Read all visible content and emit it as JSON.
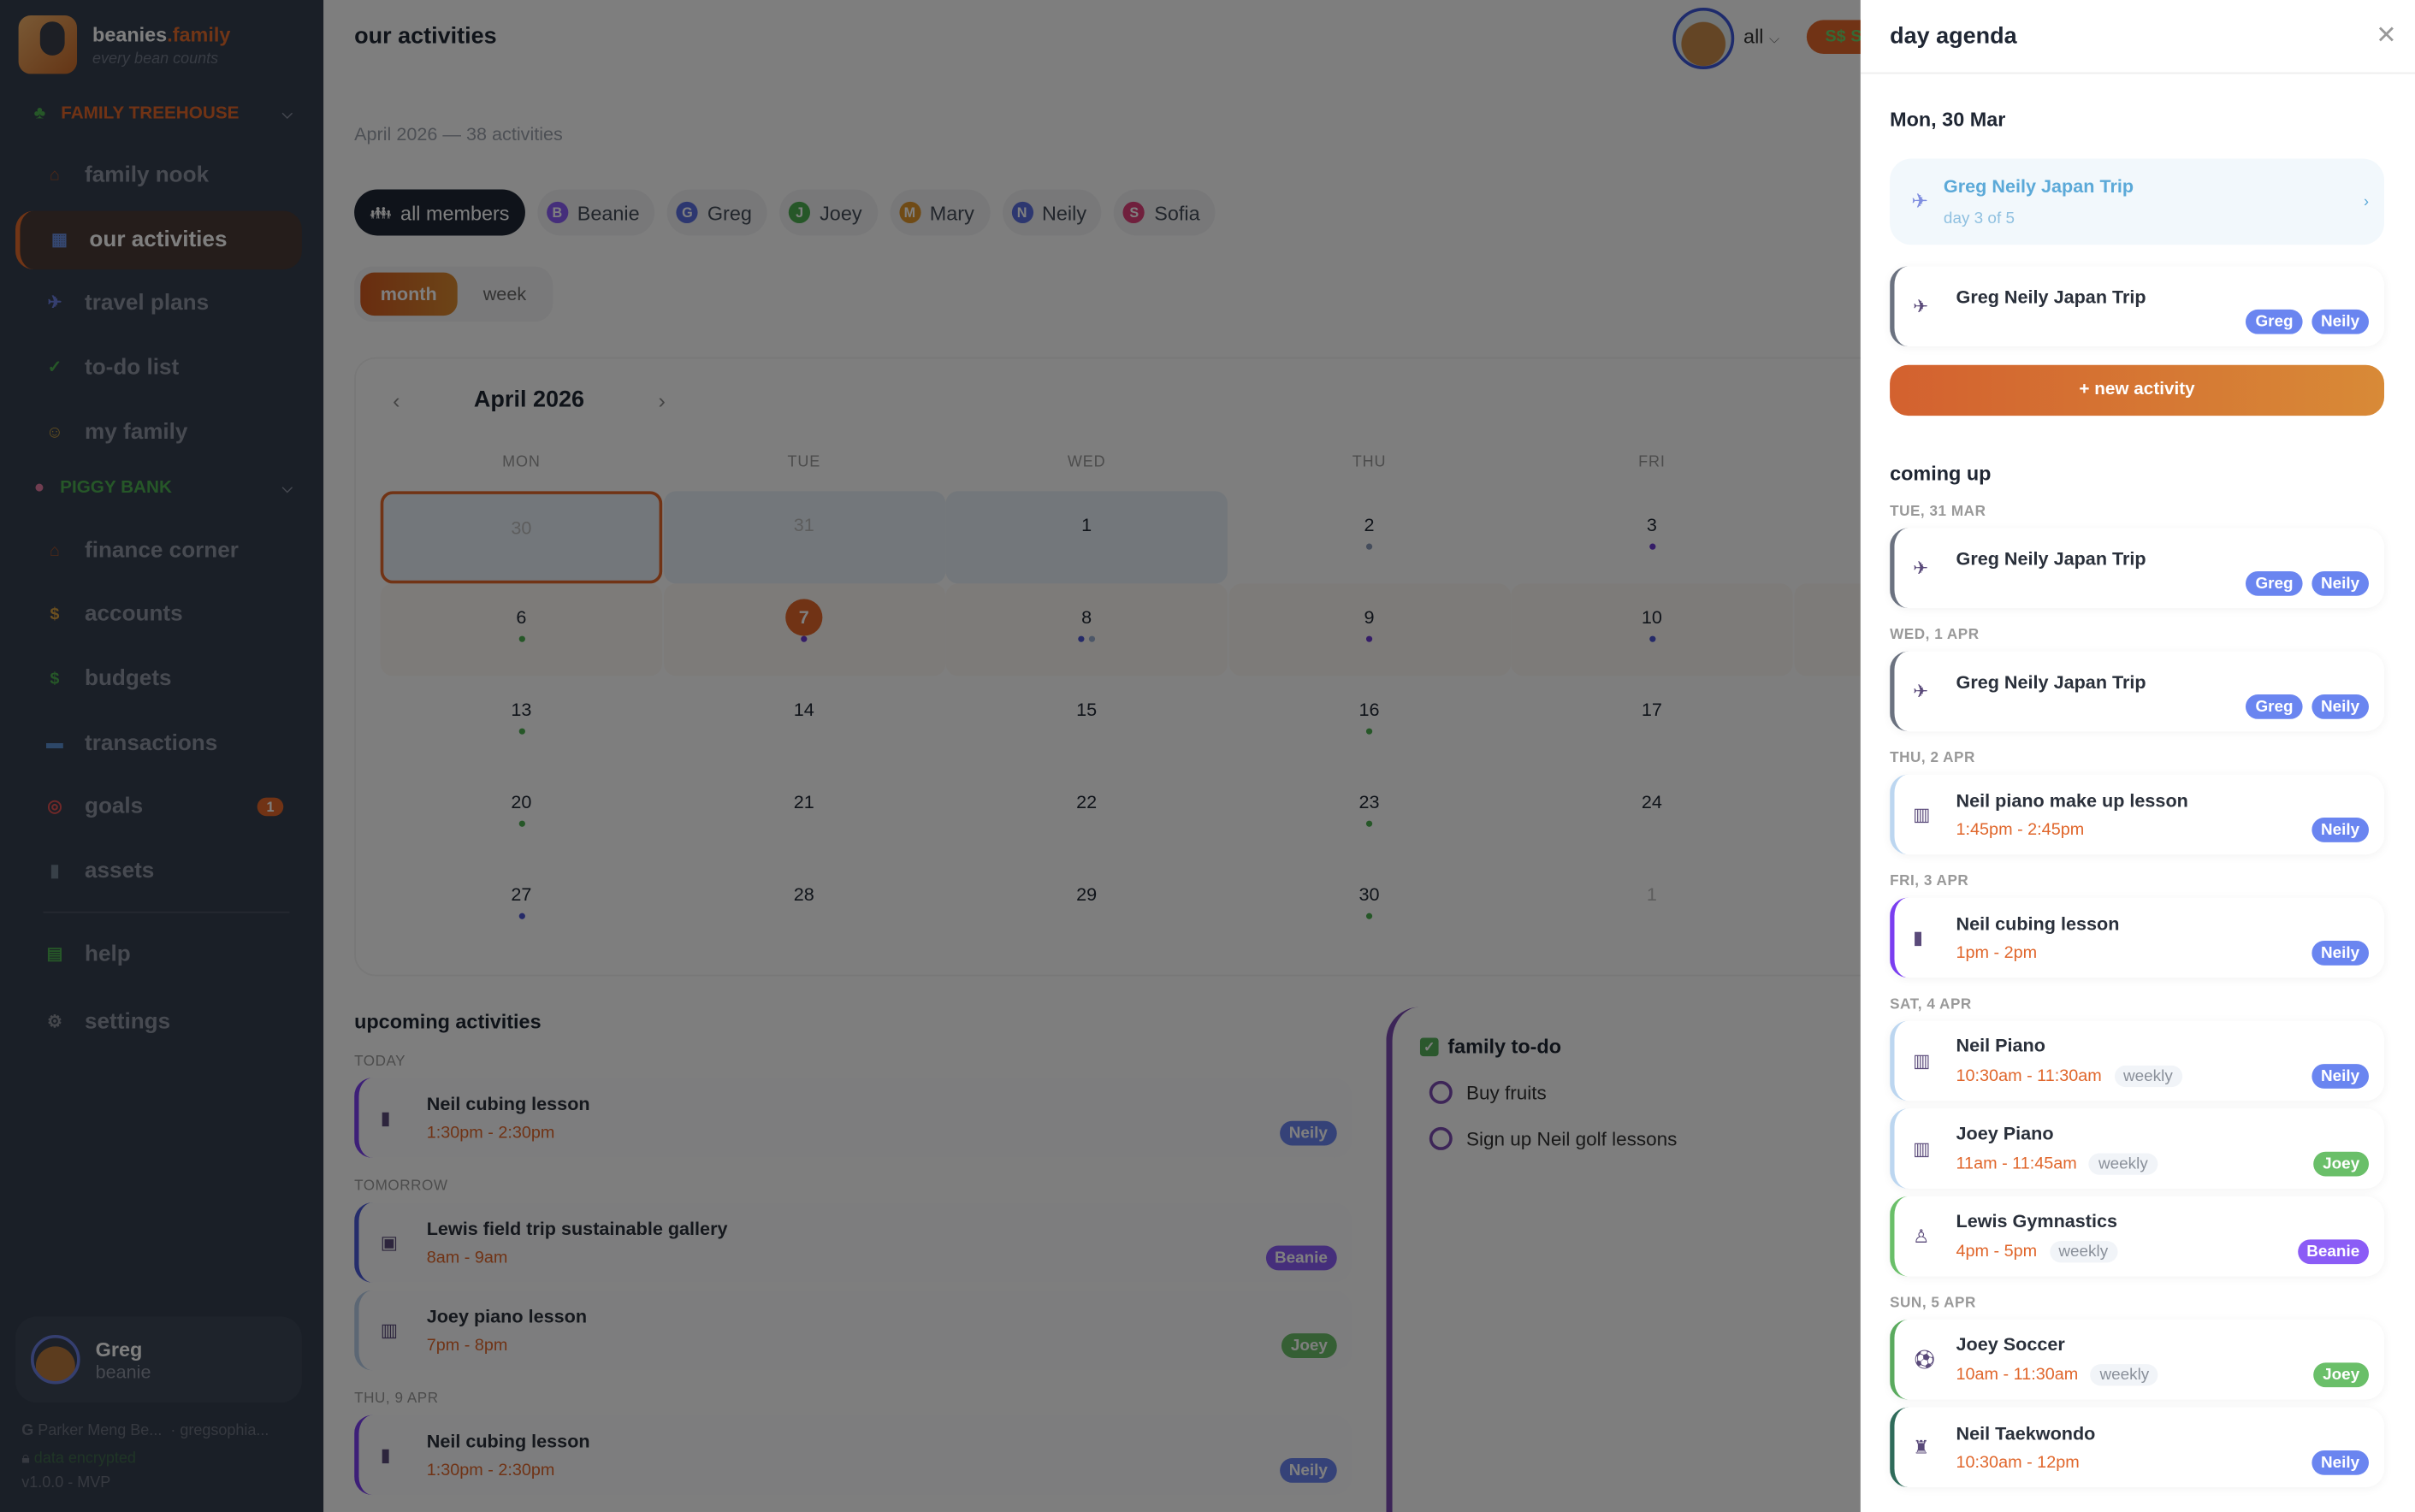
{
  "colors": {
    "accent": "#e2672a",
    "greg": "#6a85f0",
    "neily": "#6a85f0",
    "joey": "#6abf69",
    "beanie": "#8b5cf6"
  },
  "brand": {
    "name": "beanies",
    "suffix": ".family",
    "tagline": "every bean counts"
  },
  "sidebar": {
    "sections": [
      {
        "label": "FAMILY TREEHOUSE",
        "icon": "tree-icon",
        "color": "#e2672a"
      },
      {
        "label": "PIGGY BANK",
        "icon": "pig-icon",
        "color": "#4caf50"
      }
    ],
    "items": [
      {
        "label": "family nook",
        "icon": "house-icon",
        "glyph": "⌂",
        "color": "#a0522d"
      },
      {
        "label": "our activities",
        "icon": "calendar-icon",
        "glyph": "▦",
        "color": "#6b8fe0",
        "active": true
      },
      {
        "label": "travel plans",
        "icon": "airplane-icon",
        "glyph": "✈",
        "color": "#6b7fe0"
      },
      {
        "label": "to-do list",
        "icon": "checkbox-icon",
        "glyph": "✓",
        "color": "#4caf50"
      },
      {
        "label": "my family",
        "icon": "family-icon",
        "glyph": "☺",
        "color": "#c9a040"
      },
      {
        "label": "finance corner",
        "icon": "house-icon",
        "glyph": "⌂",
        "color": "#a0522d"
      },
      {
        "label": "accounts",
        "icon": "money-bag-icon",
        "glyph": "$",
        "color": "#d8a040"
      },
      {
        "label": "budgets",
        "icon": "banknote-icon",
        "glyph": "$",
        "color": "#4caf50"
      },
      {
        "label": "transactions",
        "icon": "credit-card-icon",
        "glyph": "▬",
        "color": "#5b8fd0"
      },
      {
        "label": "goals",
        "icon": "target-icon",
        "glyph": "◎",
        "color": "#e05050",
        "badge": "1"
      },
      {
        "label": "assets",
        "icon": "building-icon",
        "glyph": "▮",
        "color": "#708090"
      },
      {
        "label": "help",
        "icon": "books-icon",
        "glyph": "▤",
        "color": "#4caf50"
      },
      {
        "label": "settings",
        "icon": "gear-icon",
        "glyph": "⚙",
        "color": "#8a8f99"
      }
    ],
    "user": {
      "name": "Greg",
      "role": "beanie"
    },
    "footer": {
      "account": "Parker Meng Be...",
      "email": "· gregsophia...",
      "encryption": "data encrypted",
      "version": "v1.0.0 - MVP"
    }
  },
  "header": {
    "title": "our activities",
    "member_select": "all",
    "currency": "S$ SG"
  },
  "main": {
    "subtitle": "April 2026 — 38 activities",
    "filters": [
      {
        "label": "all members",
        "active": true
      },
      {
        "label": "Beanie",
        "initial": "B",
        "color": "#8b5cf6"
      },
      {
        "label": "Greg",
        "initial": "G",
        "color": "#5b6fe0"
      },
      {
        "label": "Joey",
        "initial": "J",
        "color": "#4caf50"
      },
      {
        "label": "Mary",
        "initial": "M",
        "color": "#e0962c"
      },
      {
        "label": "Neily",
        "initial": "N",
        "color": "#5b6fe0"
      },
      {
        "label": "Sofia",
        "initial": "S",
        "color": "#e0407a"
      }
    ],
    "view_toggle": {
      "month": "month",
      "week": "week",
      "selected": "month"
    },
    "calendar": {
      "month_label": "April 2026",
      "weekdays": [
        "MON",
        "TUE",
        "WED",
        "THU",
        "FRI"
      ],
      "weeks": [
        [
          {
            "d": "30",
            "muted": true,
            "trip": true,
            "selected": true,
            "dots": []
          },
          {
            "d": "31",
            "muted": true,
            "trip": true,
            "dots": []
          },
          {
            "d": "1",
            "trip": true,
            "dots": []
          },
          {
            "d": "2",
            "dots": [
              "#8a9ab8"
            ]
          },
          {
            "d": "3",
            "dots": [
              "#6a3ad0"
            ]
          }
        ],
        [
          {
            "d": "6",
            "week": true,
            "dots": [
              "#4caf50"
            ]
          },
          {
            "d": "7",
            "week": true,
            "today": true,
            "dots": [
              "#6a3ad0"
            ]
          },
          {
            "d": "8",
            "week": true,
            "dots": [
              "#4a55d0",
              "#9aaed0"
            ]
          },
          {
            "d": "9",
            "week": true,
            "dots": [
              "#6a3ad0"
            ]
          },
          {
            "d": "10",
            "week": true,
            "dots": [
              "#4a55d0"
            ]
          }
        ],
        [
          {
            "d": "13",
            "dots": [
              "#4caf50"
            ]
          },
          {
            "d": "14",
            "dots": []
          },
          {
            "d": "15",
            "dots": []
          },
          {
            "d": "16",
            "dots": [
              "#4caf50"
            ]
          },
          {
            "d": "17",
            "dots": []
          }
        ],
        [
          {
            "d": "20",
            "dots": [
              "#4caf50"
            ]
          },
          {
            "d": "21",
            "dots": []
          },
          {
            "d": "22",
            "dots": []
          },
          {
            "d": "23",
            "dots": [
              "#4caf50"
            ]
          },
          {
            "d": "24",
            "dots": []
          }
        ],
        [
          {
            "d": "27",
            "dots": [
              "#4a55d0"
            ]
          },
          {
            "d": "28",
            "dots": []
          },
          {
            "d": "29",
            "dots": []
          },
          {
            "d": "30",
            "dots": [
              "#4caf50"
            ]
          },
          {
            "d": "1",
            "muted": true,
            "dots": []
          }
        ]
      ]
    },
    "upcoming": {
      "title": "upcoming activities",
      "groups": [
        {
          "label": "TODAY",
          "items": [
            {
              "name": "Neil cubing lesson",
              "time": "1:30pm - 2:30pm",
              "icon": "notebook-icon",
              "glyph": "▮",
              "border": "#7a3ef0",
              "members": [
                {
                  "n": "Neily",
                  "c": "#6a85f0"
                }
              ]
            }
          ]
        },
        {
          "label": "TOMORROW",
          "items": [
            {
              "name": "Lewis field trip sustainable gallery",
              "time": "8am - 9am",
              "icon": "bus-icon",
              "glyph": "▣",
              "border": "#4a5ad8",
              "members": [
                {
                  "n": "Beanie",
                  "c": "#8b5cf6"
                }
              ]
            },
            {
              "name": "Joey piano lesson",
              "time": "7pm - 8pm",
              "icon": "piano-icon",
              "glyph": "▥",
              "border": "#b8cfe8",
              "members": [
                {
                  "n": "Joey",
                  "c": "#6abf69"
                }
              ]
            }
          ]
        },
        {
          "label": "THU, 9 APR",
          "items": [
            {
              "name": "Neil cubing lesson",
              "time": "1:30pm - 2:30pm",
              "icon": "notebook-icon",
              "glyph": "▮",
              "border": "#7a3ef0",
              "members": [
                {
                  "n": "Neily",
                  "c": "#6a85f0"
                }
              ]
            }
          ]
        }
      ]
    },
    "todo": {
      "title": "family to-do",
      "items": [
        "Buy fruits",
        "Sign up Neil golf lessons"
      ]
    }
  },
  "agenda": {
    "title": "day agenda",
    "date": "Mon, 30 Mar",
    "pinned": {
      "name": "Greg Neily Japan Trip",
      "detail": "day 3 of 5"
    },
    "today_items": [
      {
        "name": "Greg Neily Japan Trip",
        "icon": "airplane-icon",
        "glyph": "✈",
        "border": "#6b7280",
        "members": [
          {
            "n": "Greg",
            "c": "#6a85f0"
          },
          {
            "n": "Neily",
            "c": "#6a85f0"
          }
        ]
      }
    ],
    "new_activity": "+ new activity",
    "coming_up_title": "coming up",
    "groups": [
      {
        "label": "TUE, 31 MAR",
        "items": [
          {
            "name": "Greg Neily Japan Trip",
            "icon": "airplane-icon",
            "glyph": "✈",
            "border": "#6b7280",
            "members": [
              {
                "n": "Greg",
                "c": "#6a85f0"
              },
              {
                "n": "Neily",
                "c": "#6a85f0"
              }
            ]
          }
        ]
      },
      {
        "label": "WED, 1 APR",
        "items": [
          {
            "name": "Greg Neily Japan Trip",
            "icon": "airplane-icon",
            "glyph": "✈",
            "border": "#6b7280",
            "members": [
              {
                "n": "Greg",
                "c": "#6a85f0"
              },
              {
                "n": "Neily",
                "c": "#6a85f0"
              }
            ]
          }
        ]
      },
      {
        "label": "THU, 2 APR",
        "items": [
          {
            "name": "Neil piano make up lesson",
            "time": "1:45pm - 2:45pm",
            "icon": "piano-icon",
            "glyph": "▥",
            "border": "#bcd6f0",
            "members": [
              {
                "n": "Neily",
                "c": "#6a85f0"
              }
            ]
          }
        ]
      },
      {
        "label": "FRI, 3 APR",
        "items": [
          {
            "name": "Neil cubing lesson",
            "time": "1pm - 2pm",
            "icon": "notebook-icon",
            "glyph": "▮",
            "border": "#7a3ef0",
            "members": [
              {
                "n": "Neily",
                "c": "#6a85f0"
              }
            ]
          }
        ]
      },
      {
        "label": "SAT, 4 APR",
        "items": [
          {
            "name": "Neil Piano",
            "time": "10:30am - 11:30am",
            "recurrence": "weekly",
            "icon": "piano-icon",
            "glyph": "▥",
            "border": "#bcd6f0",
            "members": [
              {
                "n": "Neily",
                "c": "#6a85f0"
              }
            ]
          },
          {
            "name": "Joey Piano",
            "time": "11am - 11:45am",
            "recurrence": "weekly",
            "icon": "piano-icon",
            "glyph": "▥",
            "border": "#bcd6f0",
            "members": [
              {
                "n": "Joey",
                "c": "#6abf69"
              }
            ]
          },
          {
            "name": "Lewis Gymnastics",
            "time": "4pm - 5pm",
            "recurrence": "weekly",
            "icon": "gymnast-icon",
            "glyph": "♙",
            "border": "#6abf69",
            "members": [
              {
                "n": "Beanie",
                "c": "#8b5cf6"
              }
            ]
          }
        ]
      },
      {
        "label": "SUN, 5 APR",
        "items": [
          {
            "name": "Joey Soccer",
            "time": "10am - 11:30am",
            "recurrence": "weekly",
            "icon": "soccer-ball-icon",
            "glyph": "⚽",
            "border": "#5aaa5e",
            "members": [
              {
                "n": "Joey",
                "c": "#6abf69"
              }
            ]
          },
          {
            "name": "Neil Taekwondo",
            "time": "10:30am - 12pm",
            "icon": "martial-arts-uniform-icon",
            "glyph": "♜",
            "border": "#2f6b5a",
            "members": [
              {
                "n": "Neily",
                "c": "#6a85f0"
              }
            ]
          }
        ]
      }
    ]
  }
}
